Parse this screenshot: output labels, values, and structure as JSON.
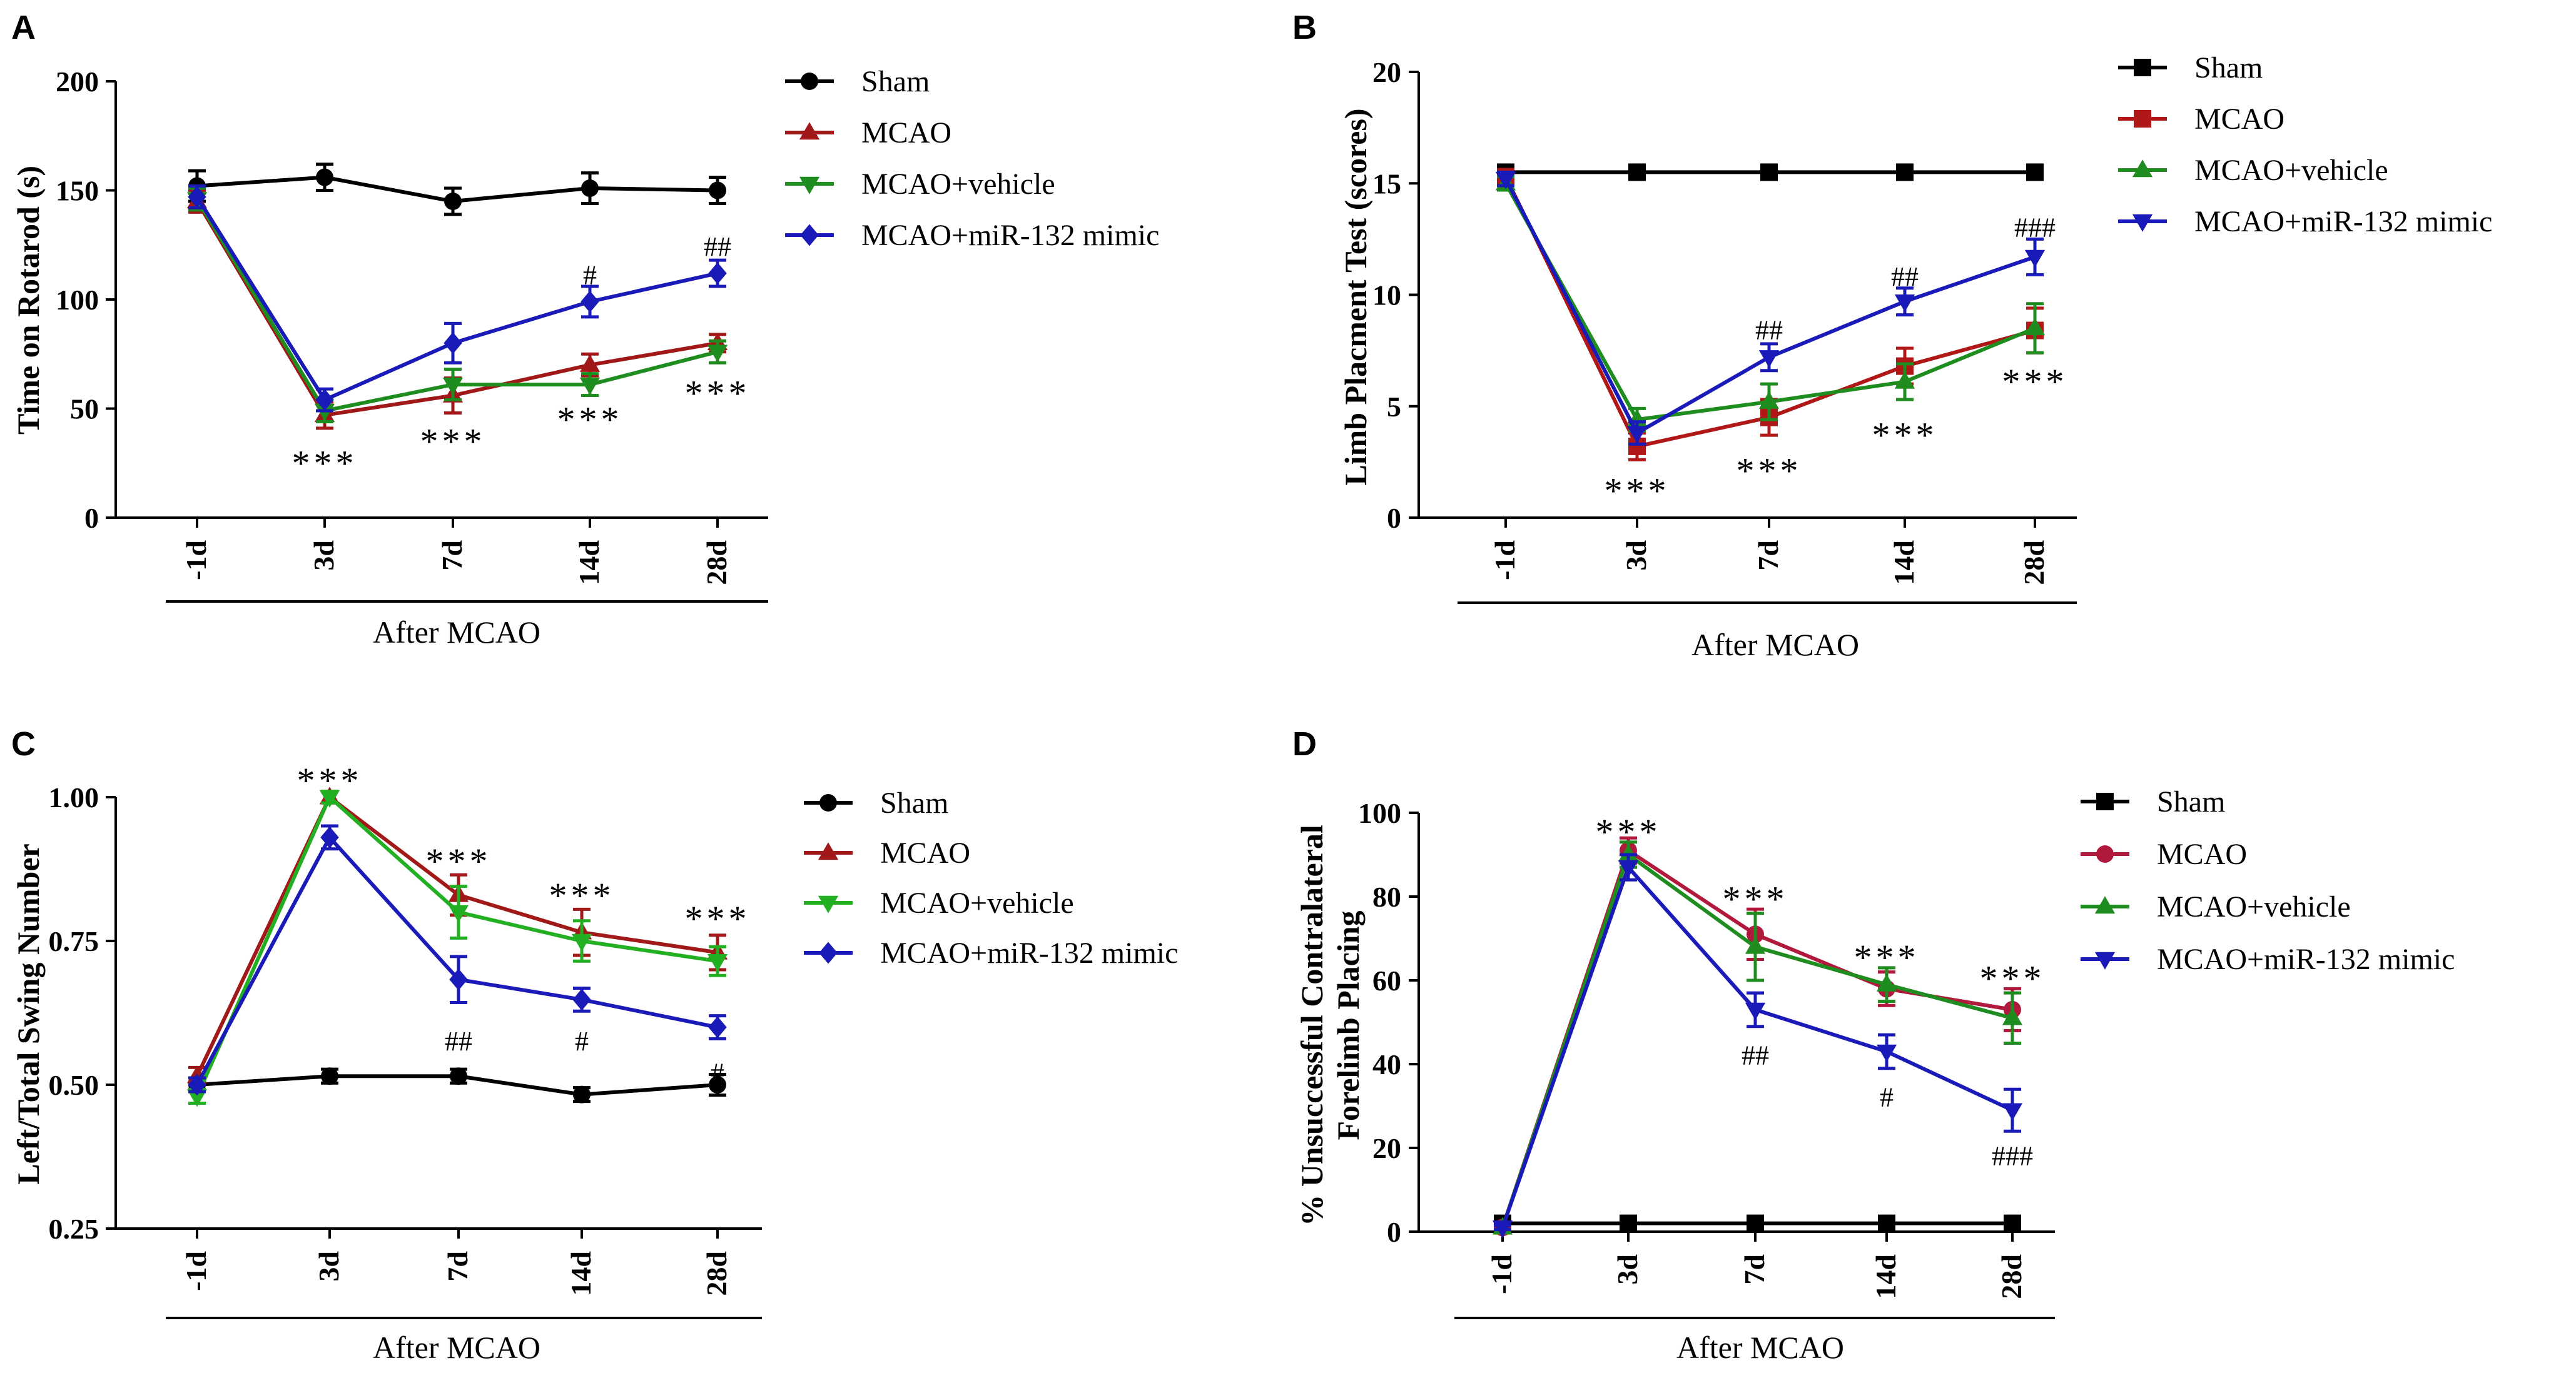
{
  "chart_data": [
    {
      "panel_label": "A",
      "type": "line",
      "categories": [
        "-1d",
        "3d",
        "7d",
        "14d",
        "28d"
      ],
      "xlabel": "After MCAO",
      "ylabel": "Time on Rotarod (s)",
      "ylim": [
        0,
        200
      ],
      "yticks": [
        "0",
        "50",
        "100",
        "150",
        "200"
      ],
      "series": [
        {
          "name": "Sham",
          "color": "#000000",
          "marker": "circle",
          "values": [
            152,
            156,
            145,
            151,
            150
          ],
          "errors": [
            7,
            6,
            6,
            7,
            6
          ]
        },
        {
          "name": "MCAO",
          "color": "#a01818",
          "marker": "triangle-up",
          "values": [
            145,
            47,
            56,
            70,
            80
          ],
          "errors": [
            5,
            6,
            8,
            5,
            4
          ]
        },
        {
          "name": "MCAO+vehicle",
          "color": "#1e8c1e",
          "marker": "triangle-down",
          "values": [
            146,
            49,
            61,
            61,
            76
          ],
          "errors": [
            5,
            5,
            7,
            5,
            5
          ]
        },
        {
          "name": "MCAO+miR-132 mimic",
          "color": "#1a1ab8",
          "marker": "diamond",
          "values": [
            147,
            54,
            80,
            99,
            112
          ],
          "errors": [
            5,
            5,
            9,
            7,
            6
          ]
        }
      ],
      "annotations": [
        {
          "category": "3d",
          "text": "***",
          "value": 28
        },
        {
          "category": "7d",
          "text": "***",
          "value": 38
        },
        {
          "category": "14d",
          "text": "***",
          "value": 48
        },
        {
          "category": "28d",
          "text": "***",
          "value": 60
        },
        {
          "category": "14d",
          "text": "#",
          "value": 111
        },
        {
          "category": "28d",
          "text": "##",
          "value": 124
        }
      ]
    },
    {
      "panel_label": "B",
      "type": "line",
      "categories": [
        "-1d",
        "3d",
        "7d",
        "14d",
        "28d"
      ],
      "xlabel": "After MCAO",
      "ylabel": "Limb Placment Test (scores)",
      "ylim": [
        0,
        20
      ],
      "yticks": [
        "0",
        "5",
        "10",
        "15",
        "20"
      ],
      "series": [
        {
          "name": "Sham",
          "color": "#000000",
          "marker": "circle-square",
          "values": [
            15.5,
            15.5,
            15.5,
            15.5,
            15.5
          ],
          "errors": [
            0.2,
            0.2,
            0.2,
            0.2,
            0.2
          ]
        },
        {
          "name": "MCAO",
          "color": "#b01818",
          "marker": "square",
          "values": [
            15.3,
            3.2,
            4.5,
            6.8,
            8.4
          ],
          "errors": [
            0.3,
            0.6,
            0.8,
            0.8,
            1.0
          ]
        },
        {
          "name": "MCAO+vehicle",
          "color": "#1e8c1e",
          "marker": "triangle-up",
          "values": [
            15.0,
            4.4,
            5.2,
            6.1,
            8.5
          ],
          "errors": [
            0.3,
            0.5,
            0.8,
            0.8,
            1.1
          ]
        },
        {
          "name": "MCAO+miR-132 mimic",
          "color": "#1a1ab8",
          "marker": "triangle-down",
          "values": [
            15.2,
            3.8,
            7.2,
            9.7,
            11.7
          ],
          "errors": [
            0.3,
            0.5,
            0.6,
            0.6,
            0.8
          ]
        }
      ],
      "annotations": [
        {
          "category": "3d",
          "text": "***",
          "value": 1.5
        },
        {
          "category": "7d",
          "text": "***",
          "value": 2.4
        },
        {
          "category": "14d",
          "text": "***",
          "value": 4.0
        },
        {
          "category": "28d",
          "text": "***",
          "value": 6.4
        },
        {
          "category": "7d",
          "text": "##",
          "value": 8.4
        },
        {
          "category": "14d",
          "text": "##",
          "value": 10.8
        },
        {
          "category": "28d",
          "text": "###",
          "value": 13.0
        }
      ]
    },
    {
      "panel_label": "C",
      "type": "line",
      "categories": [
        "-1d",
        "3d",
        "7d",
        "14d",
        "28d"
      ],
      "xlabel": "After MCAO",
      "ylabel": "Left/Total Swing Number",
      "ylim": [
        0.25,
        1.0
      ],
      "yticks": [
        "0.25",
        "0.50",
        "0.75",
        "1.00"
      ],
      "series": [
        {
          "name": "Sham",
          "color": "#000000",
          "marker": "circle",
          "values": [
            0.5,
            0.515,
            0.515,
            0.483,
            0.5
          ],
          "errors": [
            0.012,
            0.012,
            0.012,
            0.012,
            0.018
          ]
        },
        {
          "name": "MCAO",
          "color": "#a01818",
          "marker": "triangle-up",
          "values": [
            0.515,
            1.0,
            0.83,
            0.765,
            0.73
          ],
          "errors": [
            0.015,
            0.01,
            0.035,
            0.04,
            0.03
          ]
        },
        {
          "name": "MCAO+vehicle",
          "color": "#22b022",
          "marker": "triangle-down",
          "values": [
            0.48,
            1.0,
            0.8,
            0.75,
            0.715
          ],
          "errors": [
            0.012,
            0.01,
            0.045,
            0.035,
            0.025
          ]
        },
        {
          "name": "MCAO+miR-132 mimic",
          "color": "#1a1ab8",
          "marker": "diamond",
          "values": [
            0.5,
            0.93,
            0.683,
            0.648,
            0.6
          ],
          "errors": [
            0.012,
            0.02,
            0.04,
            0.02,
            0.02
          ]
        }
      ],
      "annotations": [
        {
          "category": "3d",
          "text": "***",
          "value": 1.04
        },
        {
          "category": "7d",
          "text": "***",
          "value": 0.9
        },
        {
          "category": "14d",
          "text": "***",
          "value": 0.84
        },
        {
          "category": "28d",
          "text": "***",
          "value": 0.8
        },
        {
          "category": "7d",
          "text": "##",
          "value": 0.575
        },
        {
          "category": "14d",
          "text": "#",
          "value": 0.575
        },
        {
          "category": "28d",
          "text": "#",
          "value": 0.52
        }
      ]
    },
    {
      "panel_label": "D",
      "type": "line",
      "categories": [
        "-1d",
        "3d",
        "7d",
        "14d",
        "28d"
      ],
      "xlabel": "After MCAO",
      "ylabel": [
        "% Unsuccessful Contralateral",
        "Forelimb Placing"
      ],
      "ylim": [
        0,
        100
      ],
      "yticks": [
        "0",
        "20",
        "40",
        "60",
        "80",
        "100"
      ],
      "series": [
        {
          "name": "Sham",
          "color": "#000000",
          "marker": "square",
          "values": [
            2,
            2,
            2,
            2,
            2
          ],
          "errors": [
            0.3,
            0.3,
            0.3,
            0.3,
            0.3
          ]
        },
        {
          "name": "MCAO",
          "color": "#b0183c",
          "marker": "circle",
          "values": [
            1,
            91,
            71,
            58,
            53
          ],
          "errors": [
            0.5,
            3,
            6,
            4,
            5
          ]
        },
        {
          "name": "MCAO+vehicle",
          "color": "#1e8c1e",
          "marker": "triangle-up",
          "values": [
            1,
            90,
            68,
            59,
            51
          ],
          "errors": [
            0.5,
            3,
            8,
            4,
            6
          ]
        },
        {
          "name": "MCAO+miR-132 mimic",
          "color": "#1a1ab8",
          "marker": "triangle-down",
          "values": [
            1,
            87,
            53,
            43,
            29
          ],
          "errors": [
            0.5,
            3,
            4,
            4,
            5
          ]
        }
      ],
      "annotations": [
        {
          "category": "3d",
          "text": "***",
          "value": 97
        },
        {
          "category": "7d",
          "text": "***",
          "value": 81
        },
        {
          "category": "14d",
          "text": "***",
          "value": 67
        },
        {
          "category": "28d",
          "text": "***",
          "value": 62
        },
        {
          "category": "7d",
          "text": "##",
          "value": 42
        },
        {
          "category": "14d",
          "text": "#",
          "value": 32
        },
        {
          "category": "28d",
          "text": "###",
          "value": 18
        }
      ]
    }
  ]
}
